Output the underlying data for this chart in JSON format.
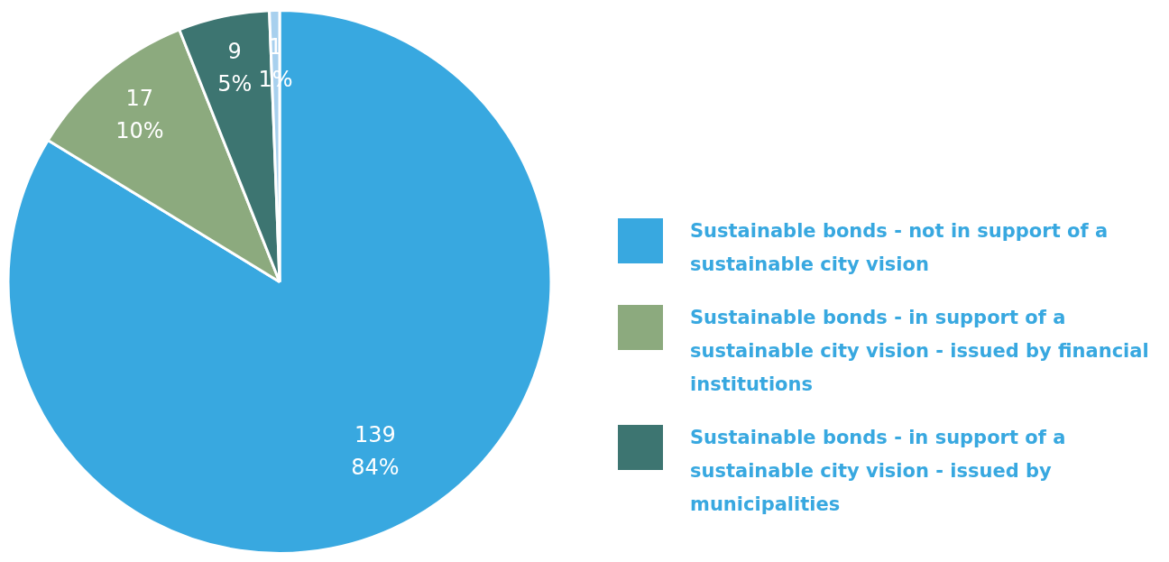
{
  "chart_data": {
    "type": "pie",
    "categories": [
      "Sustainable bonds - not in support of a sustainable city vision",
      "Sustainable bonds - in support of a sustainable city vision - issued by financial institutions",
      "Sustainable bonds - in support of a sustainable city vision - issued by municipalities",
      null
    ],
    "values": [
      139,
      17,
      9,
      1
    ],
    "colors": [
      "#38a8e0",
      "#8caa7e",
      "#3d7571",
      "#a8d0ee"
    ],
    "value_labels": [
      "139\n84%",
      "17\n10%",
      "9\n5%",
      "1\n1%"
    ],
    "legend": "right"
  }
}
